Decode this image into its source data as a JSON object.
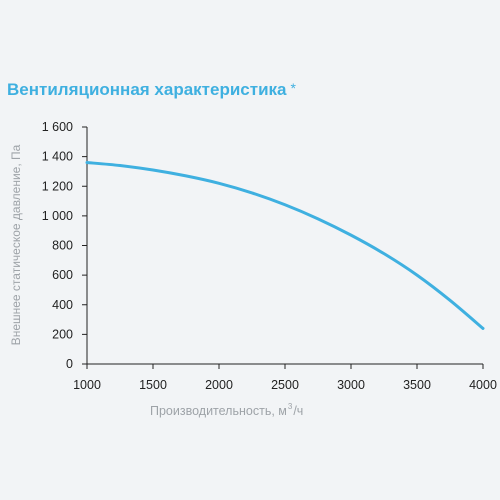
{
  "header": {
    "title": "Вентиляционная характеристика",
    "title_mark": "*"
  },
  "chart_data": {
    "type": "line",
    "title": "Вентиляционная характеристика",
    "xlabel_prefix": "Производительность, м",
    "xlabel_sup": "3",
    "xlabel_suffix": "/ч",
    "ylabel": "Внешнее статическое давление, Па",
    "xlim": [
      1000,
      4000
    ],
    "ylim": [
      0,
      1600
    ],
    "x_ticks": [
      1000,
      1500,
      2000,
      2500,
      3000,
      3500,
      4000
    ],
    "x_tick_labels": [
      "1000",
      "1500",
      "2000",
      "2500",
      "3000",
      "3500",
      "4000"
    ],
    "y_ticks": [
      0,
      200,
      400,
      600,
      800,
      1000,
      1200,
      1400,
      1600
    ],
    "y_tick_labels": [
      "0",
      "200",
      "400",
      "600",
      "800",
      "1 000",
      "1 200",
      "1 400",
      "1 600"
    ],
    "grid": false,
    "series": [
      {
        "color": "#3fb0e0",
        "x": [
          1000,
          1250,
          1500,
          1750,
          2000,
          2250,
          2500,
          2750,
          3000,
          3250,
          3500,
          3750,
          4000
        ],
        "y": [
          1360,
          1340,
          1310,
          1270,
          1220,
          1155,
          1075,
          980,
          870,
          745,
          600,
          430,
          240
        ]
      }
    ]
  },
  "colors": {
    "accent": "#3fb0e0",
    "axis": "#222222",
    "label": "#9ea3a8",
    "background": "#f2f4f6"
  }
}
